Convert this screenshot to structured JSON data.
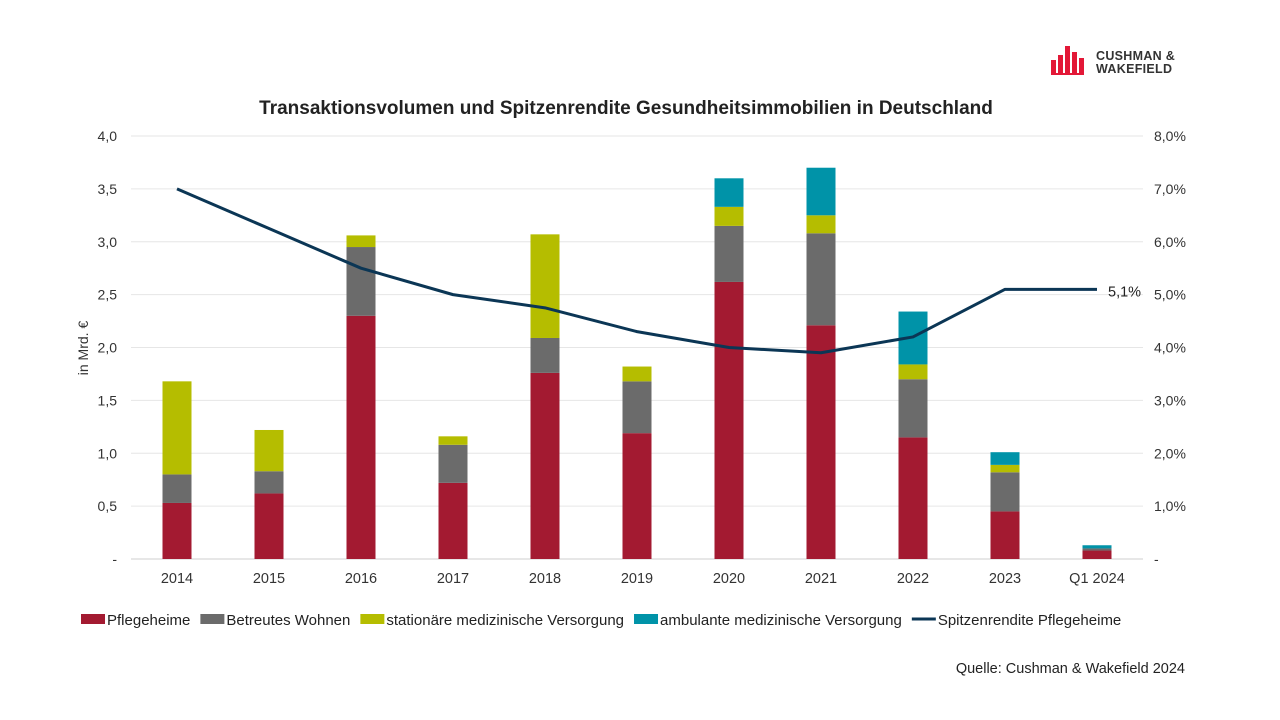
{
  "brand": {
    "line1": "CUSHMAN &",
    "line2": "WAKEFIELD",
    "color": "#e31837"
  },
  "source": "Quelle:  Cushman & Wakefield 2024",
  "chart_data": {
    "type": "bar",
    "stacked": true,
    "title": "Transaktionsvolumen und Spitzenrendite Gesundheitsimmobilien  in Deutschland",
    "ylabel": "in Mrd. €",
    "ylim": [
      0,
      4.0
    ],
    "y_ticks": [
      "-",
      "0,5",
      "1,0",
      "1,5",
      "2,0",
      "2,5",
      "3,0",
      "3,5",
      "4,0"
    ],
    "y2lim": [
      0,
      0.08
    ],
    "y2_ticks": [
      "-",
      "1,0%",
      "2,0%",
      "3,0%",
      "4,0%",
      "5,0%",
      "6,0%",
      "7,0%",
      "8,0%"
    ],
    "categories": [
      "2014",
      "2015",
      "2016",
      "2017",
      "2018",
      "2019",
      "2020",
      "2021",
      "2022",
      "2023",
      "Q1 2024"
    ],
    "series": [
      {
        "name": "Pflegeheime",
        "color": "#a31a31",
        "values": [
          0.53,
          0.62,
          2.3,
          0.72,
          1.76,
          1.19,
          2.62,
          2.21,
          1.15,
          0.45,
          0.08
        ]
      },
      {
        "name": "Betreutes Wohnen",
        "color": "#6b6b6b",
        "values": [
          0.27,
          0.21,
          0.65,
          0.36,
          0.33,
          0.49,
          0.53,
          0.87,
          0.55,
          0.37,
          0.02
        ]
      },
      {
        "name": "stationäre medizinische Versorgung",
        "color": "#b5bd00",
        "values": [
          0.88,
          0.39,
          0.11,
          0.08,
          0.98,
          0.14,
          0.18,
          0.17,
          0.14,
          0.07,
          0.0
        ]
      },
      {
        "name": "ambulante medizinische Versorgung",
        "color": "#0093a8",
        "values": [
          0.0,
          0.0,
          0.0,
          0.0,
          0.0,
          0.0,
          0.27,
          0.45,
          0.5,
          0.12,
          0.03
        ]
      }
    ],
    "line": {
      "name": "Spitzenrendite Pflegeheime",
      "color": "#0b3655",
      "values": [
        0.07,
        0.0625,
        0.055,
        0.05,
        0.0475,
        0.043,
        0.04,
        0.039,
        0.042,
        0.051,
        0.051
      ],
      "end_label": "5,1%"
    },
    "legend_position": "bottom",
    "grid": true
  }
}
